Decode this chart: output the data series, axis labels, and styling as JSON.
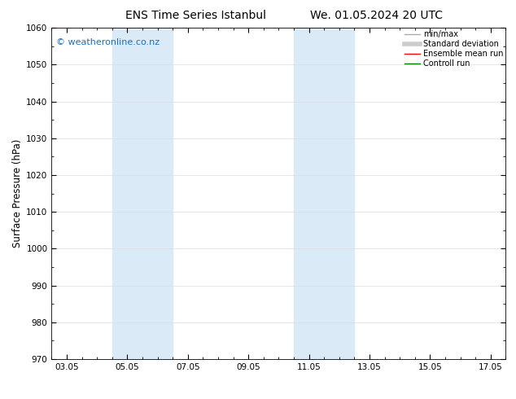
{
  "title_left": "ENS Time Series Istanbul",
  "title_right": "We. 01.05.2024 20 UTC",
  "ylabel": "Surface Pressure (hPa)",
  "ylim": [
    970,
    1060
  ],
  "yticks": [
    970,
    980,
    990,
    1000,
    1010,
    1020,
    1030,
    1040,
    1050,
    1060
  ],
  "xtick_labels": [
    "03.05",
    "05.05",
    "07.05",
    "09.05",
    "11.05",
    "13.05",
    "15.05",
    "17.05"
  ],
  "xtick_positions": [
    0,
    2,
    4,
    6,
    8,
    10,
    12,
    14
  ],
  "shaded_bands": [
    {
      "x_start": 1.5,
      "x_end": 2.5,
      "color": "#daeaf7"
    },
    {
      "x_start": 2.5,
      "x_end": 3.5,
      "color": "#daeaf7"
    },
    {
      "x_start": 7.5,
      "x_end": 8.5,
      "color": "#daeaf7"
    },
    {
      "x_start": 8.5,
      "x_end": 9.5,
      "color": "#daeaf7"
    }
  ],
  "watermark_text": "© weatheronline.co.nz",
  "watermark_color": "#1a6fc4",
  "watermark_fontsize": 8,
  "legend_entries": [
    {
      "label": "min/max",
      "color": "#aaaaaa",
      "lw": 1.0,
      "style": "-"
    },
    {
      "label": "Standard deviation",
      "color": "#cccccc",
      "lw": 4,
      "style": "-"
    },
    {
      "label": "Ensemble mean run",
      "color": "red",
      "lw": 1.0,
      "style": "-"
    },
    {
      "label": "Controll run",
      "color": "green",
      "lw": 1.0,
      "style": "-"
    }
  ],
  "bg_color": "#ffffff",
  "plot_bg_color": "#ffffff",
  "tick_label_fontsize": 7.5,
  "axis_label_fontsize": 8.5,
  "title_fontsize": 10,
  "grid_color": "#dddddd",
  "grid_lw": 0.5
}
